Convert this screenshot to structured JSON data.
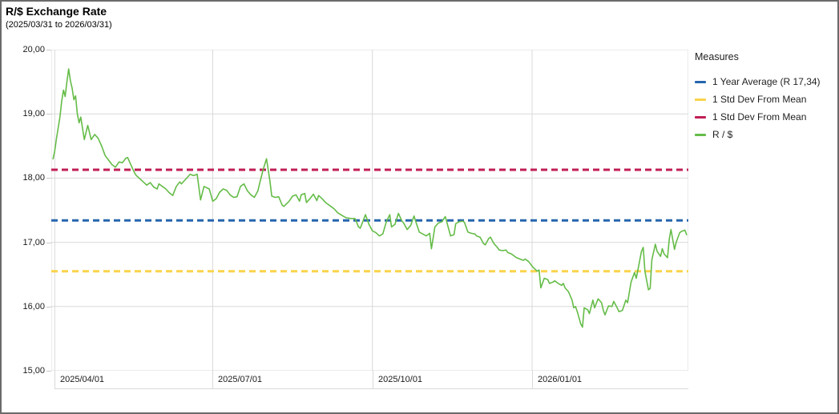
{
  "header": {
    "title": "R/$ Exchange Rate",
    "subtitle": "(2025/03/31 to 2026/03/31)"
  },
  "colors": {
    "average_line": "#2565AD",
    "std_dev_upper_line": "#C01E56",
    "std_dev_lower_line": "#FAD34B",
    "series_line": "#65BC48",
    "grid": "#d9d9d9",
    "axis_text": "#1a1a1a"
  },
  "legend": {
    "title": "Measures",
    "items": [
      {
        "label": "1 Year Average (R 17,34)",
        "color": "#2565AD"
      },
      {
        "label": "1 Std Dev From Mean",
        "color": "#FAD34B"
      },
      {
        "label": "1 Std Dev From Mean",
        "color": "#C01E56"
      },
      {
        "label": "R / $",
        "color": "#65BC48"
      }
    ]
  },
  "chart_data": {
    "type": "line",
    "title": "R/$ Exchange Rate",
    "subtitle": "(2025/03/31 to 2026/03/31)",
    "xlabel": "",
    "ylabel": "",
    "grid": true,
    "legend_position": "right",
    "x_axis": {
      "start_date": "2025/03/31",
      "end_date": "2026/03/31",
      "domain_days": [
        -1,
        366
      ],
      "tick_days": [
        1,
        92,
        184,
        276
      ],
      "tick_labels": [
        "2025/04/01",
        "2025/07/01",
        "2025/10/01",
        "2026/01/01"
      ]
    },
    "y_axis": {
      "range": [
        15,
        20
      ],
      "tick_values": [
        20,
        19,
        18,
        17,
        16,
        15
      ],
      "tick_labels": [
        "20,00",
        "19,00",
        "18,00",
        "17,00",
        "16,00",
        "15,00"
      ]
    },
    "reference_lines": [
      {
        "name": "1 Year Average",
        "value": 17.34,
        "color": "#2565AD",
        "style": "dashed"
      },
      {
        "name": "1 Std Dev From Mean (upper)",
        "value": 18.13,
        "color": "#C01E56",
        "style": "dashed"
      },
      {
        "name": "1 Std Dev From Mean (lower)",
        "value": 16.55,
        "color": "#FAD34B",
        "style": "dashed"
      }
    ],
    "series": [
      {
        "name": "R / $",
        "color": "#65BC48",
        "points_format": "[day_offset_from_2025-03-31, rand_per_dollar]",
        "points": [
          [
            0,
            18.3
          ],
          [
            1,
            18.42
          ],
          [
            2,
            18.62
          ],
          [
            4,
            18.95
          ],
          [
            5,
            19.2
          ],
          [
            6,
            19.37
          ],
          [
            7,
            19.27
          ],
          [
            8,
            19.5
          ],
          [
            9,
            19.7
          ],
          [
            10,
            19.52
          ],
          [
            11,
            19.4
          ],
          [
            12,
            19.22
          ],
          [
            13,
            19.28
          ],
          [
            14,
            19.0
          ],
          [
            15,
            18.86
          ],
          [
            16,
            18.95
          ],
          [
            18,
            18.6
          ],
          [
            20,
            18.82
          ],
          [
            22,
            18.6
          ],
          [
            24,
            18.68
          ],
          [
            26,
            18.62
          ],
          [
            28,
            18.5
          ],
          [
            30,
            18.35
          ],
          [
            32,
            18.28
          ],
          [
            34,
            18.21
          ],
          [
            36,
            18.17
          ],
          [
            38,
            18.25
          ],
          [
            40,
            18.24
          ],
          [
            42,
            18.31
          ],
          [
            43,
            18.32
          ],
          [
            45,
            18.2
          ],
          [
            47,
            18.08
          ],
          [
            48,
            18.04
          ],
          [
            50,
            17.99
          ],
          [
            52,
            17.94
          ],
          [
            54,
            17.89
          ],
          [
            56,
            17.93
          ],
          [
            58,
            17.86
          ],
          [
            60,
            17.83
          ],
          [
            61,
            17.91
          ],
          [
            63,
            17.87
          ],
          [
            65,
            17.83
          ],
          [
            67,
            17.77
          ],
          [
            69,
            17.73
          ],
          [
            71,
            17.87
          ],
          [
            73,
            17.94
          ],
          [
            74,
            17.91
          ],
          [
            77,
            18.0
          ],
          [
            79,
            18.06
          ],
          [
            81,
            18.04
          ],
          [
            83,
            18.06
          ],
          [
            85,
            17.66
          ],
          [
            87,
            17.87
          ],
          [
            90,
            17.83
          ],
          [
            92,
            17.64
          ],
          [
            94,
            17.68
          ],
          [
            96,
            17.78
          ],
          [
            98,
            17.83
          ],
          [
            100,
            17.81
          ],
          [
            102,
            17.74
          ],
          [
            104,
            17.7
          ],
          [
            106,
            17.71
          ],
          [
            108,
            17.87
          ],
          [
            110,
            17.91
          ],
          [
            112,
            17.8
          ],
          [
            114,
            17.74
          ],
          [
            116,
            17.7
          ],
          [
            118,
            17.8
          ],
          [
            119,
            17.91
          ],
          [
            121,
            18.13
          ],
          [
            123,
            18.3
          ],
          [
            125,
            17.95
          ],
          [
            126,
            17.72
          ],
          [
            128,
            17.7
          ],
          [
            130,
            17.71
          ],
          [
            132,
            17.58
          ],
          [
            133,
            17.56
          ],
          [
            136,
            17.64
          ],
          [
            138,
            17.72
          ],
          [
            140,
            17.74
          ],
          [
            142,
            17.64
          ],
          [
            143,
            17.74
          ],
          [
            145,
            17.76
          ],
          [
            146,
            17.62
          ],
          [
            148,
            17.68
          ],
          [
            150,
            17.75
          ],
          [
            152,
            17.65
          ],
          [
            153,
            17.73
          ],
          [
            155,
            17.68
          ],
          [
            157,
            17.62
          ],
          [
            160,
            17.56
          ],
          [
            162,
            17.52
          ],
          [
            164,
            17.46
          ],
          [
            167,
            17.41
          ],
          [
            169,
            17.38
          ],
          [
            172,
            17.37
          ],
          [
            174,
            17.37
          ],
          [
            176,
            17.24
          ],
          [
            177,
            17.22
          ],
          [
            179,
            17.36
          ],
          [
            180,
            17.43
          ],
          [
            182,
            17.28
          ],
          [
            184,
            17.18
          ],
          [
            186,
            17.15
          ],
          [
            188,
            17.1
          ],
          [
            190,
            17.13
          ],
          [
            192,
            17.32
          ],
          [
            194,
            17.43
          ],
          [
            195,
            17.24
          ],
          [
            197,
            17.28
          ],
          [
            199,
            17.45
          ],
          [
            201,
            17.33
          ],
          [
            202,
            17.3
          ],
          [
            204,
            17.2
          ],
          [
            206,
            17.26
          ],
          [
            208,
            17.41
          ],
          [
            209,
            17.32
          ],
          [
            211,
            17.16
          ],
          [
            213,
            17.13
          ],
          [
            215,
            17.1
          ],
          [
            217,
            17.14
          ],
          [
            218,
            16.9
          ],
          [
            220,
            17.24
          ],
          [
            222,
            17.3
          ],
          [
            224,
            17.32
          ],
          [
            226,
            17.4
          ],
          [
            228,
            17.2
          ],
          [
            229,
            17.1
          ],
          [
            231,
            17.12
          ],
          [
            232,
            17.29
          ],
          [
            234,
            17.32
          ],
          [
            236,
            17.33
          ],
          [
            237,
            17.31
          ],
          [
            239,
            17.16
          ],
          [
            241,
            17.14
          ],
          [
            243,
            17.13
          ],
          [
            244,
            17.1
          ],
          [
            246,
            17.08
          ],
          [
            248,
            16.98
          ],
          [
            249,
            16.96
          ],
          [
            251,
            17.06
          ],
          [
            252,
            17.08
          ],
          [
            254,
            16.98
          ],
          [
            256,
            16.92
          ],
          [
            257,
            16.88
          ],
          [
            259,
            16.87
          ],
          [
            261,
            16.88
          ],
          [
            262,
            16.84
          ],
          [
            264,
            16.82
          ],
          [
            266,
            16.78
          ],
          [
            267,
            16.76
          ],
          [
            269,
            16.74
          ],
          [
            271,
            16.72
          ],
          [
            272,
            16.74
          ],
          [
            274,
            16.7
          ],
          [
            276,
            16.63
          ],
          [
            277,
            16.6
          ],
          [
            279,
            16.55
          ],
          [
            280,
            16.57
          ],
          [
            281,
            16.29
          ],
          [
            283,
            16.44
          ],
          [
            285,
            16.42
          ],
          [
            286,
            16.36
          ],
          [
            288,
            16.38
          ],
          [
            289,
            16.4
          ],
          [
            291,
            16.36
          ],
          [
            293,
            16.33
          ],
          [
            294,
            16.36
          ],
          [
            295,
            16.29
          ],
          [
            297,
            16.23
          ],
          [
            299,
            16.1
          ],
          [
            300,
            15.98
          ],
          [
            301,
            16.0
          ],
          [
            302,
            15.92
          ],
          [
            304,
            15.73
          ],
          [
            305,
            15.68
          ],
          [
            306,
            15.98
          ],
          [
            308,
            15.95
          ],
          [
            309,
            15.89
          ],
          [
            311,
            16.1
          ],
          [
            312,
            15.98
          ],
          [
            314,
            16.12
          ],
          [
            316,
            16.06
          ],
          [
            317,
            15.94
          ],
          [
            318,
            15.87
          ],
          [
            320,
            16.01
          ],
          [
            322,
            16.0
          ],
          [
            323,
            16.08
          ],
          [
            325,
            15.98
          ],
          [
            326,
            15.92
          ],
          [
            328,
            15.94
          ],
          [
            330,
            16.1
          ],
          [
            331,
            16.06
          ],
          [
            333,
            16.38
          ],
          [
            335,
            16.53
          ],
          [
            336,
            16.44
          ],
          [
            337,
            16.58
          ],
          [
            339,
            16.86
          ],
          [
            340,
            16.92
          ],
          [
            341,
            16.55
          ],
          [
            343,
            16.26
          ],
          [
            344,
            16.28
          ],
          [
            345,
            16.73
          ],
          [
            347,
            16.97
          ],
          [
            348,
            16.86
          ],
          [
            350,
            16.78
          ],
          [
            351,
            16.9
          ],
          [
            352,
            16.82
          ],
          [
            354,
            16.76
          ],
          [
            355,
            17.05
          ],
          [
            356,
            17.2
          ],
          [
            358,
            16.89
          ],
          [
            359,
            17.0
          ],
          [
            361,
            17.15
          ],
          [
            362,
            17.17
          ],
          [
            364,
            17.19
          ],
          [
            365,
            17.12
          ]
        ]
      }
    ]
  }
}
